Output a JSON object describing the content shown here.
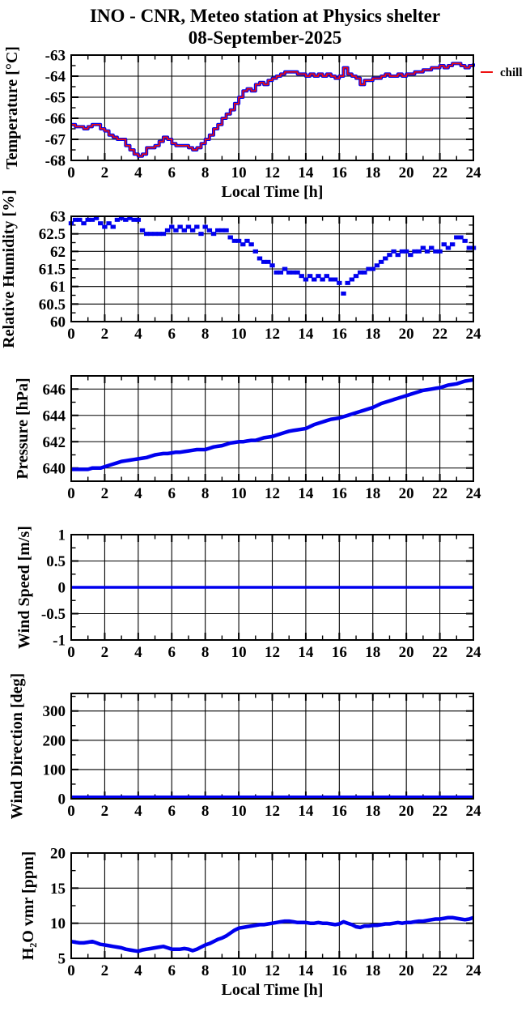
{
  "title": {
    "line1": "INO - CNR, Meteo station at Physics shelter",
    "line2": "08-September-2025"
  },
  "colors": {
    "series_blue": "#0000ee",
    "chill_red": "#ee1111",
    "frame": "#000000",
    "grid": "#000000",
    "text": "#000000",
    "background": "#ffffff"
  },
  "x_axis": {
    "label": "Local Time [h]",
    "min": 0,
    "max": 24,
    "major_ticks": [
      0,
      2,
      4,
      6,
      8,
      10,
      12,
      14,
      16,
      18,
      20,
      22,
      24
    ],
    "minor_step": 1
  },
  "chart_data": [
    {
      "id": "temperature",
      "type": "line",
      "ylabel": "Temperature [°C]",
      "ylim": [
        -68,
        -63
      ],
      "yticks": [
        -68,
        -67,
        -66,
        -65,
        -64,
        -63
      ],
      "ytick_labels": [
        "-68",
        "-67",
        "-66",
        "-65",
        "-64",
        "-63"
      ],
      "y_minor_step": 0.5,
      "xlabel": "Local Time [h]",
      "show_xlabel": true,
      "grid": true,
      "legend": {
        "label": "chill",
        "color": "#ee1111",
        "position": "outside-right"
      },
      "x_start": 0,
      "x_step": 0.25,
      "series": [
        {
          "name": "temperature",
          "color": "#0000ee",
          "style": "steps",
          "width": 4,
          "values": [
            -66.3,
            -66.4,
            -66.4,
            -66.5,
            -66.4,
            -66.3,
            -66.3,
            -66.5,
            -66.6,
            -66.8,
            -66.9,
            -67.0,
            -67.0,
            -67.3,
            -67.5,
            -67.7,
            -67.8,
            -67.7,
            -67.4,
            -67.4,
            -67.3,
            -67.1,
            -66.9,
            -67.0,
            -67.2,
            -67.3,
            -67.3,
            -67.3,
            -67.4,
            -67.5,
            -67.4,
            -67.2,
            -67.0,
            -66.8,
            -66.5,
            -66.3,
            -66.0,
            -65.8,
            -65.6,
            -65.3,
            -65.0,
            -64.7,
            -64.6,
            -64.7,
            -64.4,
            -64.3,
            -64.4,
            -64.2,
            -64.1,
            -64.0,
            -63.9,
            -63.8,
            -63.8,
            -63.8,
            -63.9,
            -63.9,
            -64.0,
            -63.9,
            -64.0,
            -63.9,
            -64.0,
            -63.9,
            -64.0,
            -64.1,
            -64.0,
            -63.6,
            -63.9,
            -64.0,
            -64.1,
            -64.4,
            -64.2,
            -64.2,
            -64.1,
            -64.1,
            -64.0,
            -63.9,
            -64.0,
            -64.0,
            -63.9,
            -64.0,
            -63.9,
            -63.9,
            -63.8,
            -63.8,
            -63.7,
            -63.7,
            -63.6,
            -63.6,
            -63.5,
            -63.6,
            -63.5,
            -63.4,
            -63.4,
            -63.5,
            -63.6,
            -63.5,
            -63.4
          ]
        },
        {
          "name": "chill",
          "color": "#ee1111",
          "style": "steps",
          "width": 1.7,
          "values_from": "temperature"
        }
      ]
    },
    {
      "id": "relative_humidity",
      "type": "scatter",
      "ylabel": "Relative Humidity [%]",
      "ylim": [
        60,
        63
      ],
      "yticks": [
        60,
        60.5,
        61,
        61.5,
        62,
        62.5,
        63
      ],
      "ytick_labels": [
        "60",
        "60.5",
        "61",
        "61.5",
        "62",
        "62.5",
        "63"
      ],
      "y_minor_step": 0.25,
      "xlabel": "",
      "show_xlabel": false,
      "grid": true,
      "x_start": 0,
      "x_step": 0.25,
      "series": [
        {
          "name": "relative_humidity",
          "color": "#0000ee",
          "style": "squares",
          "width": 5,
          "values": [
            62.8,
            62.9,
            62.9,
            62.8,
            62.9,
            62.9,
            63.0,
            62.8,
            62.7,
            62.8,
            62.7,
            62.9,
            63.0,
            62.9,
            63.0,
            62.9,
            62.9,
            62.6,
            62.5,
            62.5,
            62.5,
            62.5,
            62.5,
            62.6,
            62.7,
            62.6,
            62.7,
            62.6,
            62.7,
            62.6,
            62.7,
            62.5,
            62.7,
            62.6,
            62.5,
            62.6,
            62.6,
            62.6,
            62.4,
            62.3,
            62.3,
            62.2,
            62.3,
            62.2,
            62.0,
            61.8,
            61.7,
            61.7,
            61.6,
            61.4,
            61.4,
            61.5,
            61.4,
            61.4,
            61.4,
            61.3,
            61.2,
            61.3,
            61.2,
            61.3,
            61.2,
            61.3,
            61.2,
            61.2,
            61.1,
            60.8,
            61.1,
            61.2,
            61.3,
            61.4,
            61.4,
            61.5,
            61.5,
            61.6,
            61.7,
            61.8,
            61.9,
            62.0,
            61.9,
            62.0,
            62.0,
            61.9,
            62.0,
            62.0,
            62.1,
            62.0,
            62.1,
            62.0,
            62.0,
            62.2,
            62.1,
            62.2,
            62.4,
            62.4,
            62.3,
            62.1,
            62.1
          ]
        }
      ]
    },
    {
      "id": "pressure",
      "type": "line",
      "ylabel": "Pressure [hPa]",
      "ylim": [
        639,
        647
      ],
      "yticks": [
        640,
        642,
        644,
        646
      ],
      "ytick_labels": [
        "640",
        "642",
        "644",
        "646"
      ],
      "y_minor_step": 1,
      "xlabel": "",
      "show_xlabel": false,
      "grid": true,
      "x_start": 0,
      "x_step": 0.25,
      "series": [
        {
          "name": "pressure",
          "color": "#0000ee",
          "style": "line",
          "width": 4.5,
          "values": [
            639.9,
            639.9,
            639.9,
            639.9,
            639.9,
            640.0,
            640.0,
            640.0,
            640.1,
            640.2,
            640.3,
            640.4,
            640.5,
            640.55,
            640.6,
            640.65,
            640.7,
            640.75,
            640.8,
            640.9,
            641.0,
            641.05,
            641.1,
            641.1,
            641.15,
            641.2,
            641.2,
            641.25,
            641.3,
            641.35,
            641.4,
            641.4,
            641.4,
            641.5,
            641.6,
            641.65,
            641.7,
            641.8,
            641.9,
            641.95,
            642.0,
            642.0,
            642.05,
            642.1,
            642.1,
            642.2,
            642.3,
            642.35,
            642.4,
            642.5,
            642.6,
            642.7,
            642.8,
            642.85,
            642.9,
            642.95,
            643.0,
            643.15,
            643.3,
            643.4,
            643.5,
            643.6,
            643.7,
            643.75,
            643.8,
            643.9,
            644.0,
            644.1,
            644.2,
            644.3,
            644.4,
            644.5,
            644.6,
            644.75,
            644.9,
            645.0,
            645.1,
            645.2,
            645.3,
            645.4,
            645.5,
            645.6,
            645.7,
            645.8,
            645.9,
            645.95,
            646.0,
            646.05,
            646.1,
            646.2,
            646.3,
            646.35,
            646.4,
            646.5,
            646.6,
            646.65,
            646.7
          ]
        }
      ]
    },
    {
      "id": "wind_speed",
      "type": "line",
      "ylabel": "Wind Speed [m/s]",
      "ylim": [
        -1,
        1
      ],
      "yticks": [
        -1,
        -0.5,
        0,
        0.5,
        1
      ],
      "ytick_labels": [
        "-1",
        "-0.5",
        "0",
        "0.5",
        "1"
      ],
      "y_minor_step": 0.25,
      "xlabel": "",
      "show_xlabel": false,
      "grid": true,
      "x_start": 0,
      "x_step": 24,
      "series": [
        {
          "name": "wind_speed",
          "color": "#0000ee",
          "style": "line",
          "width": 3.5,
          "values": [
            0,
            0
          ]
        }
      ]
    },
    {
      "id": "wind_direction",
      "type": "line",
      "ylabel": "Wind Direction [deg]",
      "ylim": [
        0,
        360
      ],
      "yticks": [
        0,
        100,
        200,
        300
      ],
      "ytick_labels": [
        "0",
        "100",
        "200",
        "300"
      ],
      "y_minor_step": 50,
      "xlabel": "",
      "show_xlabel": false,
      "grid": true,
      "x_start": 0,
      "x_step": 24,
      "series": [
        {
          "name": "wind_direction",
          "color": "#0000ee",
          "style": "line",
          "width": 3.5,
          "values": [
            0,
            0
          ]
        }
      ]
    },
    {
      "id": "h2o_vmr",
      "type": "line",
      "ylabel": "H₂O vmr [ppm]",
      "ylim": [
        5,
        20
      ],
      "yticks": [
        5,
        10,
        15,
        20
      ],
      "ytick_labels": [
        "5",
        "10",
        "15",
        "20"
      ],
      "y_minor_step": 2.5,
      "xlabel": "Local Time [h]",
      "show_xlabel": true,
      "grid": true,
      "x_start": 0,
      "x_step": 0.25,
      "series": [
        {
          "name": "h2o_vmr",
          "color": "#0000ee",
          "style": "line",
          "width": 4.5,
          "values": [
            7.4,
            7.3,
            7.2,
            7.2,
            7.3,
            7.4,
            7.2,
            7.0,
            6.9,
            6.8,
            6.7,
            6.6,
            6.5,
            6.3,
            6.2,
            6.1,
            6.0,
            6.2,
            6.3,
            6.4,
            6.5,
            6.6,
            6.7,
            6.5,
            6.3,
            6.3,
            6.3,
            6.4,
            6.3,
            6.1,
            6.3,
            6.6,
            6.9,
            7.1,
            7.4,
            7.7,
            7.9,
            8.2,
            8.6,
            9.0,
            9.3,
            9.4,
            9.5,
            9.6,
            9.7,
            9.8,
            9.8,
            9.9,
            10.0,
            10.1,
            10.2,
            10.3,
            10.3,
            10.2,
            10.1,
            10.1,
            10.1,
            10.0,
            10.0,
            10.1,
            10.0,
            10.0,
            9.9,
            9.8,
            9.9,
            10.2,
            10.0,
            9.8,
            9.5,
            9.4,
            9.6,
            9.6,
            9.7,
            9.7,
            9.8,
            9.9,
            9.9,
            10.0,
            10.1,
            10.0,
            10.1,
            10.1,
            10.2,
            10.3,
            10.3,
            10.4,
            10.5,
            10.6,
            10.6,
            10.7,
            10.8,
            10.8,
            10.7,
            10.6,
            10.5,
            10.6,
            10.8
          ]
        }
      ]
    }
  ]
}
